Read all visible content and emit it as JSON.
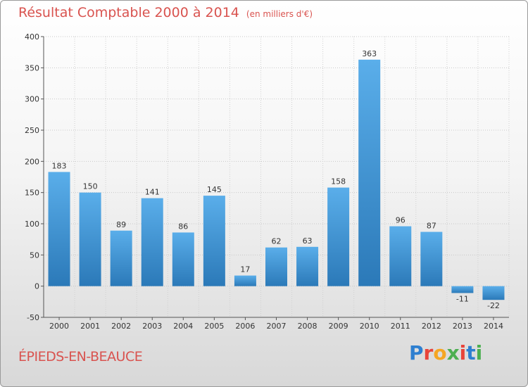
{
  "header": {
    "title": "Résultat Comptable 2000 à 2014",
    "subtitle": "(en milliers d'€)"
  },
  "footer": {
    "city": "ÉPIEDS-EN-BEAUCE",
    "logo_text": "Proxiti"
  },
  "colors": {
    "title": "#d9534f",
    "bar_light": "#5aaeea",
    "bar_dark": "#2b79b8",
    "logo": [
      "#2e7fd0",
      "#e8443a",
      "#f5a623",
      "#4caf50",
      "#e8443a",
      "#2e7fd0",
      "#4caf50"
    ]
  },
  "chart_data": {
    "type": "bar",
    "categories": [
      "2000",
      "2001",
      "2002",
      "2003",
      "2004",
      "2005",
      "2006",
      "2007",
      "2008",
      "2009",
      "2010",
      "2011",
      "2012",
      "2013",
      "2014"
    ],
    "values": [
      183,
      150,
      89,
      141,
      86,
      145,
      17,
      62,
      63,
      158,
      363,
      96,
      87,
      -11,
      -22
    ],
    "labels": [
      "183",
      "150",
      "89",
      "141",
      "86",
      "145",
      "17",
      "62",
      "63",
      "158",
      "363",
      "96",
      "87",
      "-11",
      "-22"
    ],
    "yticks": [
      -50,
      0,
      50,
      100,
      150,
      200,
      250,
      300,
      350,
      400
    ],
    "ylim": [
      -50,
      400
    ],
    "grid": true
  }
}
